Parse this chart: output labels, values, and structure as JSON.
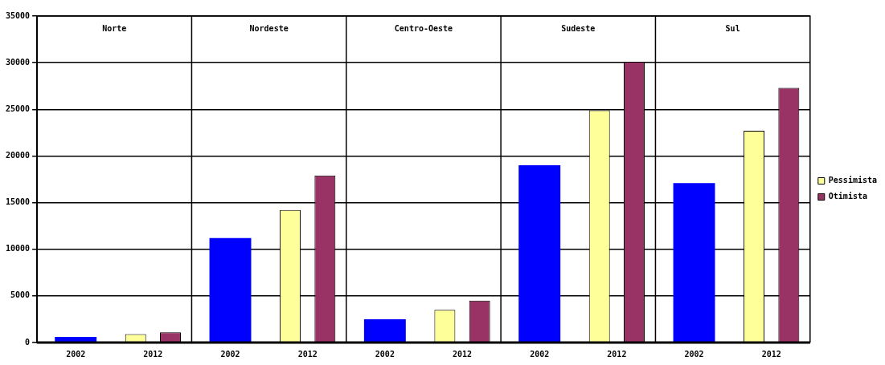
{
  "chart_data": {
    "type": "bar",
    "categories": [
      "2002",
      "2012",
      "2002",
      "2012",
      "2002",
      "2012",
      "2002",
      "2012",
      "2002",
      "2012"
    ],
    "series": [
      {
        "color": "#0000ff",
        "values": [
          600,
          null,
          11200,
          null,
          2500,
          null,
          19000,
          null,
          17100,
          null
        ]
      },
      {
        "name": "Pessimista",
        "color": "#ffff99",
        "values": [
          null,
          900,
          null,
          14200,
          null,
          3500,
          null,
          24900,
          null,
          22700
        ]
      },
      {
        "name": "Otimista",
        "color": "#993366",
        "values": [
          null,
          1100,
          null,
          17900,
          null,
          4500,
          null,
          30100,
          null,
          27300
        ]
      }
    ],
    "ylim": [
      0,
      35000
    ],
    "yticks": [
      0,
      5000,
      10000,
      15000,
      20000,
      25000,
      30000,
      35000
    ],
    "grid": "y",
    "legend": "right",
    "annotations": [
      "Norte",
      "Nordeste",
      "Centro-Oeste",
      "Sudeste",
      "Sul"
    ]
  }
}
